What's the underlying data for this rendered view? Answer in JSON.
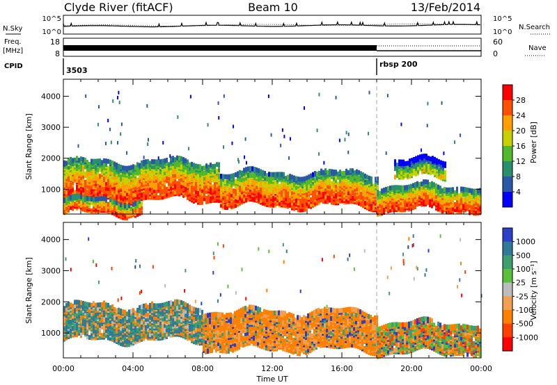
{
  "header": {
    "left": "Clyde River (fitACF)",
    "center": "Beam 10",
    "right": "13/Feb/2014"
  },
  "strip": {
    "nsky_label": "N.Sky",
    "nsky_ticks": [
      "10^5",
      "10^0"
    ],
    "nsearch_label": "N.Search",
    "nsearch_ticks": [
      "10^5",
      "10^0"
    ],
    "freq_label_1": "Freq.",
    "freq_label_2": "[MHz]",
    "freq_ticks": [
      "18",
      "8"
    ],
    "nave_label": "Nave",
    "nave_ticks": [
      "60",
      "0"
    ],
    "cpid_label": "CPID",
    "cpid_segments": [
      {
        "name": "3503",
        "start": "00:00"
      },
      {
        "name": "rbsp 200",
        "start": "18:00"
      }
    ]
  },
  "x_axis": {
    "label": "Time UT",
    "ticks": [
      "00:00",
      "04:00",
      "08:00",
      "12:00",
      "16:00",
      "20:00",
      "00:00"
    ]
  },
  "chart_data": [
    {
      "type": "heatmap",
      "panel": "power",
      "ylabel": "Slant Range [km]",
      "yticks": [
        1000,
        2000,
        3000,
        4000
      ],
      "ylim": [
        200,
        4550
      ],
      "xlim_hours": [
        0,
        24
      ],
      "colorbar": {
        "label": "Power [dB]",
        "ticks": [
          "28",
          "24",
          "20",
          "16",
          "12",
          "8",
          "4"
        ],
        "colors": [
          "#ff0000",
          "#ff5000",
          "#ffa000",
          "#c8d000",
          "#50b82a",
          "#2a8f6c",
          "#2c58a8",
          "#0000ff"
        ]
      },
      "echo_regions": [
        {
          "time": [
            0,
            9
          ],
          "range_km": [
            700,
            1900
          ],
          "level": "high"
        },
        {
          "time": [
            9,
            18
          ],
          "range_km": [
            500,
            1500
          ],
          "level": "high"
        },
        {
          "time": [
            18,
            24
          ],
          "range_km": [
            350,
            1100
          ],
          "level": "high"
        },
        {
          "time": [
            19,
            22
          ],
          "range_km": [
            1400,
            1900
          ],
          "level": "medium"
        },
        {
          "time": [
            0,
            4.5
          ],
          "range_km": [
            250,
            650
          ],
          "level": "high"
        }
      ]
    },
    {
      "type": "heatmap",
      "panel": "velocity",
      "ylabel": "Slant Range [km]",
      "yticks": [
        1000,
        2000,
        3000,
        4000
      ],
      "ylim": [
        200,
        4550
      ],
      "xlim_hours": [
        0,
        24
      ],
      "colorbar": {
        "label": "Velocity [m s⁻¹]",
        "ticks": [
          "1000",
          "500",
          "100",
          "25",
          "-25",
          "-100",
          "-500",
          "-1000"
        ],
        "colors": [
          "#2b40c8",
          "#2f7a98",
          "#3d9e70",
          "#58c03a",
          "#bcbcbc",
          "#f0a050",
          "#ff8000",
          "#ff4000",
          "#ff0000"
        ]
      },
      "echo_regions": [
        {
          "time": [
            0,
            8
          ],
          "range_km": [
            800,
            1900
          ],
          "flow": "mixed-toward"
        },
        {
          "time": [
            8,
            18
          ],
          "range_km": [
            500,
            1700
          ],
          "flow": "away"
        },
        {
          "time": [
            18,
            24
          ],
          "range_km": [
            400,
            1300
          ],
          "flow": "mixed"
        }
      ]
    }
  ]
}
